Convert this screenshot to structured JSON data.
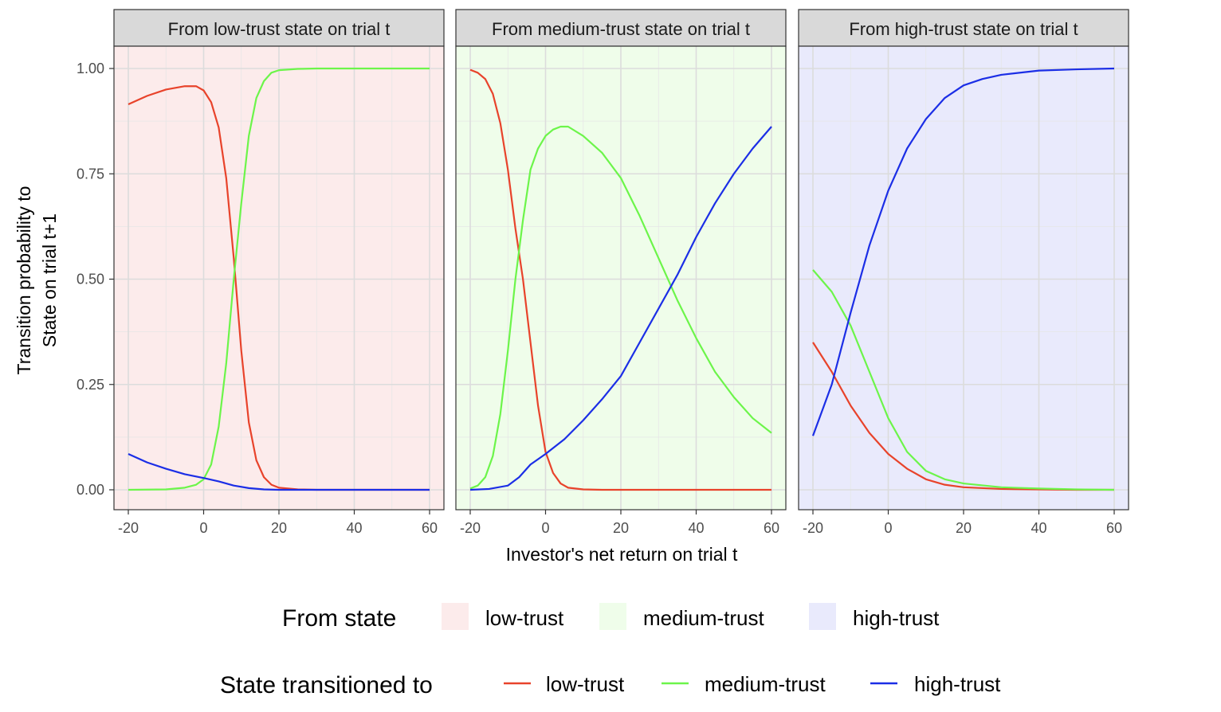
{
  "chart_data": {
    "type": "line",
    "xlabel": "Investor's net return on trial t",
    "ylabel_line1": "Transition probability to",
    "ylabel_line2": "State on trial t+1",
    "xlim": [
      -20,
      60
    ],
    "ylim": [
      0,
      1
    ],
    "x_ticks": [
      -20,
      0,
      20,
      40,
      60
    ],
    "x_tick_labels": [
      "-20",
      "0",
      "20",
      "40",
      "60"
    ],
    "y_ticks": [
      0,
      0.25,
      0.5,
      0.75,
      1.0
    ],
    "y_tick_labels": [
      "0.00",
      "0.25",
      "0.50",
      "0.75",
      "1.00"
    ],
    "grid": true,
    "legend_position": "bottom",
    "fill_legend": {
      "title": "From state",
      "entries": [
        {
          "label": "low-trust",
          "color": "#fcebeb"
        },
        {
          "label": "medium-trust",
          "color": "#effdea"
        },
        {
          "label": "high-trust",
          "color": "#e9eafc"
        }
      ]
    },
    "color_legend": {
      "title": "State transitioned to",
      "entries": [
        {
          "label": "low-trust",
          "color": "#e8432b"
        },
        {
          "label": "medium-trust",
          "color": "#6cf54a"
        },
        {
          "label": "high-trust",
          "color": "#1b2ee6"
        }
      ]
    },
    "panels": [
      {
        "strip": "From low-trust state on trial t",
        "background": "#fcebeb",
        "series": [
          {
            "name": "low-trust",
            "color": "#e8432b",
            "points": [
              [
                -20,
                0.915
              ],
              [
                -15,
                0.935
              ],
              [
                -10,
                0.95
              ],
              [
                -5,
                0.958
              ],
              [
                -2,
                0.958
              ],
              [
                0,
                0.948
              ],
              [
                2,
                0.92
              ],
              [
                4,
                0.86
              ],
              [
                6,
                0.74
              ],
              [
                8,
                0.55
              ],
              [
                10,
                0.33
              ],
              [
                12,
                0.16
              ],
              [
                14,
                0.07
              ],
              [
                16,
                0.03
              ],
              [
                18,
                0.012
              ],
              [
                20,
                0.005
              ],
              [
                25,
                0.001
              ],
              [
                30,
                0
              ],
              [
                40,
                0
              ],
              [
                50,
                0
              ],
              [
                60,
                0
              ]
            ]
          },
          {
            "name": "medium-trust",
            "color": "#6cf54a",
            "points": [
              [
                -20,
                0
              ],
              [
                -10,
                0.001
              ],
              [
                -5,
                0.005
              ],
              [
                -2,
                0.012
              ],
              [
                0,
                0.025
              ],
              [
                2,
                0.06
              ],
              [
                4,
                0.15
              ],
              [
                6,
                0.3
              ],
              [
                8,
                0.5
              ],
              [
                10,
                0.68
              ],
              [
                12,
                0.84
              ],
              [
                14,
                0.93
              ],
              [
                16,
                0.97
              ],
              [
                18,
                0.99
              ],
              [
                20,
                0.996
              ],
              [
                25,
                0.999
              ],
              [
                30,
                1
              ],
              [
                40,
                1
              ],
              [
                50,
                1
              ],
              [
                60,
                1
              ]
            ]
          },
          {
            "name": "high-trust",
            "color": "#1b2ee6",
            "points": [
              [
                -20,
                0.085
              ],
              [
                -15,
                0.065
              ],
              [
                -10,
                0.05
              ],
              [
                -5,
                0.037
              ],
              [
                0,
                0.028
              ],
              [
                4,
                0.02
              ],
              [
                8,
                0.01
              ],
              [
                12,
                0.004
              ],
              [
                16,
                0.001
              ],
              [
                20,
                0
              ],
              [
                30,
                0
              ],
              [
                40,
                0
              ],
              [
                50,
                0
              ],
              [
                60,
                0
              ]
            ]
          }
        ]
      },
      {
        "strip": "From medium-trust state on trial t",
        "background": "#effdea",
        "series": [
          {
            "name": "low-trust",
            "color": "#e8432b",
            "points": [
              [
                -20,
                0.997
              ],
              [
                -18,
                0.99
              ],
              [
                -16,
                0.975
              ],
              [
                -14,
                0.94
              ],
              [
                -12,
                0.87
              ],
              [
                -10,
                0.76
              ],
              [
                -8,
                0.62
              ],
              [
                -6,
                0.5
              ],
              [
                -4,
                0.35
              ],
              [
                -2,
                0.2
              ],
              [
                0,
                0.09
              ],
              [
                2,
                0.04
              ],
              [
                4,
                0.015
              ],
              [
                6,
                0.005
              ],
              [
                10,
                0.001
              ],
              [
                15,
                0
              ],
              [
                20,
                0
              ],
              [
                30,
                0
              ],
              [
                40,
                0
              ],
              [
                50,
                0
              ],
              [
                60,
                0
              ]
            ]
          },
          {
            "name": "medium-trust",
            "color": "#6cf54a",
            "points": [
              [
                -20,
                0.003
              ],
              [
                -18,
                0.01
              ],
              [
                -16,
                0.03
              ],
              [
                -14,
                0.08
              ],
              [
                -12,
                0.18
              ],
              [
                -10,
                0.33
              ],
              [
                -8,
                0.5
              ],
              [
                -6,
                0.64
              ],
              [
                -4,
                0.76
              ],
              [
                -2,
                0.81
              ],
              [
                0,
                0.84
              ],
              [
                2,
                0.855
              ],
              [
                4,
                0.862
              ],
              [
                6,
                0.862
              ],
              [
                10,
                0.84
              ],
              [
                15,
                0.8
              ],
              [
                20,
                0.74
              ],
              [
                25,
                0.65
              ],
              [
                30,
                0.55
              ],
              [
                35,
                0.45
              ],
              [
                40,
                0.36
              ],
              [
                45,
                0.28
              ],
              [
                50,
                0.22
              ],
              [
                55,
                0.17
              ],
              [
                60,
                0.135
              ]
            ]
          },
          {
            "name": "high-trust",
            "color": "#1b2ee6",
            "points": [
              [
                -20,
                0
              ],
              [
                -15,
                0.002
              ],
              [
                -10,
                0.01
              ],
              [
                -7,
                0.03
              ],
              [
                -4,
                0.06
              ],
              [
                0,
                0.085
              ],
              [
                5,
                0.12
              ],
              [
                10,
                0.165
              ],
              [
                15,
                0.215
              ],
              [
                20,
                0.27
              ],
              [
                25,
                0.35
              ],
              [
                30,
                0.43
              ],
              [
                35,
                0.51
              ],
              [
                40,
                0.6
              ],
              [
                45,
                0.68
              ],
              [
                50,
                0.75
              ],
              [
                55,
                0.81
              ],
              [
                60,
                0.862
              ]
            ]
          }
        ]
      },
      {
        "strip": "From high-trust state on trial t",
        "background": "#e9eafc",
        "series": [
          {
            "name": "low-trust",
            "color": "#e8432b",
            "points": [
              [
                -20,
                0.35
              ],
              [
                -15,
                0.28
              ],
              [
                -10,
                0.2
              ],
              [
                -5,
                0.135
              ],
              [
                0,
                0.085
              ],
              [
                5,
                0.05
              ],
              [
                10,
                0.025
              ],
              [
                15,
                0.012
              ],
              [
                20,
                0.006
              ],
              [
                30,
                0.002
              ],
              [
                40,
                0.001
              ],
              [
                50,
                0
              ],
              [
                60,
                0
              ]
            ]
          },
          {
            "name": "medium-trust",
            "color": "#6cf54a",
            "points": [
              [
                -20,
                0.522
              ],
              [
                -15,
                0.47
              ],
              [
                -10,
                0.39
              ],
              [
                -5,
                0.28
              ],
              [
                0,
                0.17
              ],
              [
                5,
                0.09
              ],
              [
                10,
                0.045
              ],
              [
                15,
                0.025
              ],
              [
                20,
                0.015
              ],
              [
                30,
                0.006
              ],
              [
                40,
                0.003
              ],
              [
                50,
                0.001
              ],
              [
                60,
                0
              ]
            ]
          },
          {
            "name": "high-trust",
            "color": "#1b2ee6",
            "points": [
              [
                -20,
                0.128
              ],
              [
                -15,
                0.25
              ],
              [
                -10,
                0.42
              ],
              [
                -5,
                0.58
              ],
              [
                0,
                0.71
              ],
              [
                5,
                0.81
              ],
              [
                10,
                0.88
              ],
              [
                15,
                0.93
              ],
              [
                20,
                0.96
              ],
              [
                25,
                0.975
              ],
              [
                30,
                0.985
              ],
              [
                40,
                0.995
              ],
              [
                50,
                0.998
              ],
              [
                60,
                1.0
              ]
            ]
          }
        ]
      }
    ]
  }
}
